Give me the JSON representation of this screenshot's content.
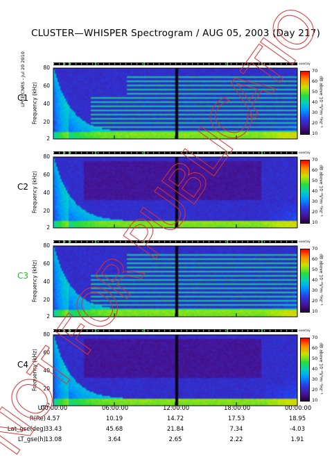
{
  "title": "CLUSTER—WHISPER Spectrogram / AUG 05, 2003 (Day 217)",
  "side_text": "LPCE/CNRS - Jul 20 2010",
  "watermark": "NOT FOR PUBLICATION",
  "colorbar": {
    "ticks": [
      "70",
      "60",
      "50",
      "40",
      "30",
      "20",
      "10"
    ],
    "label": "dB above 10⁻⁸V²m⁻²Hz⁻¹",
    "top_label": "overlay"
  },
  "chart_data": {
    "type": "heatmap",
    "x_unit": "UT",
    "x_ticks": [
      "00:00:00",
      "06:00:00",
      "12:00:00",
      "18:00:00",
      "00:00:00"
    ],
    "y_ticks": [
      80,
      60,
      40,
      20,
      2
    ],
    "ylim": [
      2,
      80
    ],
    "ylabel": "Frequency (kHz)",
    "color_range_db": [
      10,
      70
    ],
    "panels": [
      {
        "label": "C1",
        "label_color": "#000000"
      },
      {
        "label": "C2",
        "label_color": "#000000"
      },
      {
        "label": "C3",
        "label_color": "#22bb22"
      },
      {
        "label": "C4",
        "label_color": "#000000"
      }
    ]
  },
  "ephemeris": {
    "rows": [
      {
        "label": "UT",
        "values": [
          "00:00:00",
          "06:00:00",
          "12:00:00",
          "18:00:00",
          "00:00:00"
        ]
      },
      {
        "label": "R(Re)",
        "values": [
          "4.57",
          "10.19",
          "14.72",
          "17.53",
          "18.95"
        ]
      },
      {
        "label": "Lat_gse(deg)",
        "values": [
          "33.43",
          "45.68",
          "21.84",
          "7.34",
          "-4.03"
        ]
      },
      {
        "label": "LT_gse(h)",
        "values": [
          "13.08",
          "3.64",
          "2.65",
          "2.22",
          "1.91"
        ]
      }
    ]
  }
}
